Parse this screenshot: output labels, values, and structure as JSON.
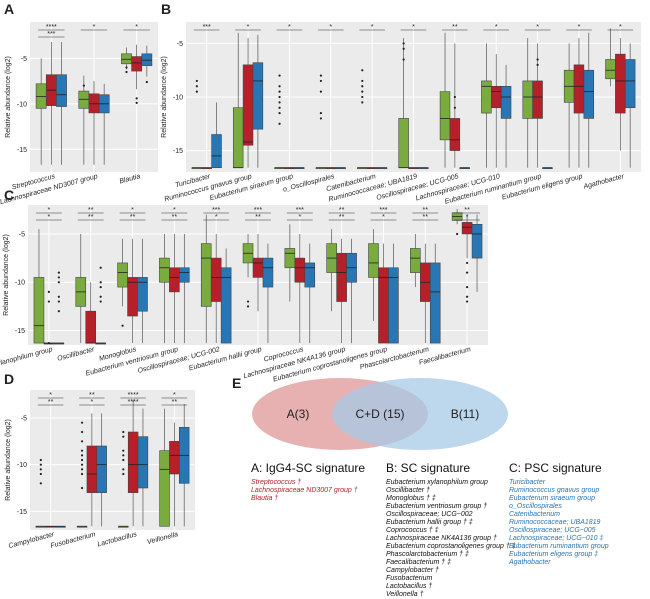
{
  "colors": {
    "igg4sc": "#7aab3f",
    "sc": "#b5202a",
    "psc": "#2876b4",
    "panel_bg": "#ebebeb",
    "venn_a": "#e3a3a3",
    "venn_b": "#a7c9e6"
  },
  "chart_data": [
    {
      "panel": "A",
      "type": "boxplot",
      "ylabel": "Relative abundance (log2)",
      "ylim": [
        -17.5,
        -1
      ],
      "yticks": [
        -15,
        -10,
        -5
      ],
      "categories": [
        "Streptococcus",
        "Lachnospiraceae ND3007 group",
        "Blautia"
      ],
      "signif": [
        [
          "****",
          "***"
        ],
        [
          "*",
          ""
        ],
        [
          "*",
          ""
        ]
      ],
      "boxes": [
        [
          [
            -16.7,
            -10.5,
            -9.2,
            -7.8,
            -5.0
          ],
          [
            -16.7,
            -10.2,
            -8.5,
            -6.8,
            -3.2
          ],
          [
            -16.7,
            -10.3,
            -9.0,
            -6.8,
            -3.2
          ]
        ],
        [
          [
            -16.7,
            -10.5,
            -9.5,
            -8.6,
            -6.9
          ],
          [
            -16.7,
            -11.0,
            -10.0,
            -8.9,
            -7.5
          ],
          [
            -16.7,
            -11.0,
            -10.0,
            -9.0,
            -7.8
          ]
        ],
        [
          [
            -6.2,
            -5.6,
            -5.1,
            -4.5,
            -3.8
          ],
          [
            -8.4,
            -6.4,
            -5.5,
            -4.8,
            -3.5
          ],
          [
            -7.0,
            -5.8,
            -5.2,
            -4.5,
            -3.6
          ]
        ]
      ],
      "outliers": [
        [
          [],
          [],
          []
        ],
        [
          [
            -8.0
          ],
          [],
          []
        ],
        [
          [
            -6.0,
            -6.5
          ],
          [
            -9.4,
            -9.9
          ],
          [
            -7.6
          ]
        ]
      ]
    },
    {
      "panel": "B",
      "type": "boxplot",
      "ylabel": "Relative abundance (log2)",
      "ylim": [
        -17,
        -3
      ],
      "yticks": [
        -15,
        -10,
        -5
      ],
      "categories": [
        "Turicibacter",
        "Ruminococcus gnavus group",
        "Eubacterium siraeum group",
        "o_Oscillospirales",
        "Catenibacterium",
        "Ruminococcaceae; UBA1819",
        "Oscillospiraceae; UCG-005",
        "Lachnospiraceae; UCG-010",
        "Eubacterium ruminantium group",
        "Eubacterium eligens group",
        "Agathobacter"
      ],
      "signif": [
        [
          "***"
        ],
        [
          "*"
        ],
        [
          "*"
        ],
        [
          "*"
        ],
        [
          "*"
        ],
        [
          "*"
        ],
        [
          "**"
        ],
        [
          "*"
        ],
        [
          "*"
        ],
        [
          "*"
        ],
        [
          "*"
        ]
      ],
      "boxes": [
        [
          [
            -16.6,
            -16.6,
            -16.6,
            -16.6,
            -16.6
          ],
          [
            -16.6,
            -16.6,
            -16.6,
            -16.6,
            -16.6
          ],
          [
            -16.6,
            -16.6,
            -15.5,
            -13.5,
            -10.5
          ]
        ],
        [
          [
            -16.6,
            -16.6,
            -16.6,
            -11.0,
            -4.0
          ],
          [
            -16.6,
            -14.5,
            -14.2,
            -7.0,
            -4.5
          ],
          [
            -16.6,
            -13.0,
            -8.5,
            -6.8,
            -4.2
          ]
        ],
        [
          [
            -16.6,
            -16.6,
            -16.6,
            -16.6,
            -16.6
          ],
          [
            -16.6,
            -16.6,
            -16.6,
            -16.6,
            -16.6
          ],
          [
            -16.6,
            -16.6,
            -16.6,
            -16.6,
            -16.6
          ]
        ],
        [
          [
            -16.6,
            -16.6,
            -16.6,
            -16.6,
            -16.6
          ],
          [
            -16.6,
            -16.6,
            -16.6,
            -16.6,
            -16.6
          ],
          [
            -16.6,
            -16.6,
            -16.6,
            -16.6,
            -16.6
          ]
        ],
        [
          [
            -16.6,
            -16.6,
            -16.6,
            -16.6,
            -16.6
          ],
          [
            -16.6,
            -16.6,
            -16.6,
            -16.6,
            -16.6
          ],
          [
            -16.6,
            -16.6,
            -16.6,
            -16.6,
            -16.6
          ]
        ],
        [
          [
            -16.6,
            -16.6,
            -16.6,
            -12.0,
            -4.5
          ],
          [
            -16.6,
            -16.6,
            -16.6,
            -16.6,
            -16.6
          ],
          [
            -16.6,
            -16.6,
            -16.6,
            -16.6,
            -16.6
          ]
        ],
        [
          [
            -16.6,
            -14.0,
            -12.0,
            -9.5,
            -4.0
          ],
          [
            -16.6,
            -15.0,
            -14.0,
            -12.0,
            -5.0
          ],
          [
            -16.6,
            -16.6,
            -16.6,
            -16.6,
            -16.6
          ]
        ],
        [
          [
            -16.6,
            -11.5,
            -9.0,
            -8.5,
            -5.0
          ],
          [
            -16.6,
            -11.0,
            -9.5,
            -9.0,
            -6.0
          ],
          [
            -16.6,
            -12.0,
            -10.0,
            -9.0,
            -7.0
          ]
        ],
        [
          [
            -16.6,
            -12.0,
            -10.0,
            -8.5,
            -4.5
          ],
          [
            -16.6,
            -12.0,
            -10.0,
            -8.5,
            -5.0
          ],
          [
            -16.6,
            -16.6,
            -16.6,
            -16.6,
            -16.6
          ]
        ],
        [
          [
            -16.6,
            -10.5,
            -9.0,
            -7.5,
            -5.0
          ],
          [
            -16.6,
            -11.5,
            -9.0,
            -7.0,
            -4.5
          ],
          [
            -16.6,
            -12.0,
            -9.5,
            -7.5,
            -4.0
          ]
        ],
        [
          [
            -9.0,
            -8.3,
            -7.5,
            -6.5,
            -3.6
          ],
          [
            -15.0,
            -11.5,
            -8.5,
            -6.0,
            -4.5
          ],
          [
            -16.6,
            -11.0,
            -8.5,
            -6.5,
            -5.0
          ]
        ]
      ],
      "outliers": [
        [
          [
            -8.5,
            -9.0,
            -9.5
          ],
          [],
          []
        ],
        [
          [],
          [],
          []
        ],
        [
          [
            -8.0,
            -9.0,
            -9.5,
            -10.0,
            -10.5,
            -11.0,
            -11.5,
            -12.5
          ],
          [],
          []
        ],
        [
          [
            -8.0,
            -8.5,
            -9.5,
            -11.5,
            -12.0
          ],
          [],
          []
        ],
        [
          [
            -7.5,
            -8.5,
            -9.0,
            -9.5,
            -10.0,
            -10.5
          ],
          [],
          []
        ],
        [
          [
            -5.0,
            -5.5,
            -6.5
          ],
          [],
          []
        ],
        [
          [],
          [
            -10.0,
            -11.0
          ],
          []
        ],
        [
          [],
          [],
          []
        ],
        [
          [],
          [
            -6.5,
            -7.0
          ],
          []
        ],
        [
          [],
          [],
          []
        ],
        [
          [],
          [],
          []
        ]
      ]
    },
    {
      "panel": "C",
      "type": "boxplot",
      "ylabel": "Relative abundance (log2)",
      "ylim": [
        -16.5,
        -2
      ],
      "yticks": [
        -15,
        -10,
        -5
      ],
      "categories": [
        "Eubacterium xylanophilum group",
        "Oscillibacter",
        "Monoglobus",
        "Eubacterium ventriosum group",
        "Oscillospiraceae; UCG-002",
        "Eubacterium hallii group",
        "Coprococcus",
        "Lachnospiraceae NK4A136 group",
        "Eubacterium coprostanoligenes group",
        "Phascolarctobacterium",
        "Faecalibacterium"
      ],
      "signif": [
        [
          "*",
          "*"
        ],
        [
          "**",
          "**"
        ],
        [
          "*",
          "**"
        ],
        [
          "*",
          "**"
        ],
        [
          "***",
          "*"
        ],
        [
          "***",
          "**"
        ],
        [
          "***",
          "*"
        ],
        [
          "**",
          "**"
        ],
        [
          "***",
          "*"
        ],
        [
          "**",
          "**"
        ],
        [
          "**",
          "*"
        ]
      ],
      "boxes": [
        [
          [
            -16.3,
            -16.3,
            -14.5,
            -9.5,
            -4.5
          ],
          [
            -16.3,
            -16.3,
            -16.3,
            -16.3,
            -16.3
          ],
          [
            -16.3,
            -16.3,
            -16.3,
            -16.3,
            -16.3
          ]
        ],
        [
          [
            -16.3,
            -12.5,
            -11.0,
            -9.5,
            -5.0
          ],
          [
            -16.3,
            -16.3,
            -16.3,
            -13.0,
            -10.0
          ],
          [
            -16.3,
            -16.3,
            -16.3,
            -16.3,
            -16.3
          ]
        ],
        [
          [
            -12.5,
            -10.5,
            -9.0,
            -8.0,
            -5.5
          ],
          [
            -16.3,
            -13.5,
            -10.0,
            -9.5,
            -5.5
          ],
          [
            -16.3,
            -13.0,
            -10.0,
            -9.5,
            -5.5
          ]
        ],
        [
          [
            -16.3,
            -10.0,
            -8.5,
            -7.5,
            -5.0
          ],
          [
            -16.3,
            -11.0,
            -9.5,
            -8.5,
            -5.0
          ],
          [
            -16.3,
            -10.0,
            -9.0,
            -8.5,
            -5.0
          ]
        ],
        [
          [
            -16.3,
            -12.5,
            -7.5,
            -6.0,
            -3.0
          ],
          [
            -16.3,
            -12.0,
            -9.5,
            -7.5,
            -5.0
          ],
          [
            -16.3,
            -16.3,
            -9.5,
            -8.5,
            -6.5
          ]
        ],
        [
          [
            -9.5,
            -8.0,
            -7.0,
            -6.0,
            -5.0
          ],
          [
            -13.0,
            -9.5,
            -8.0,
            -7.5,
            -5.0
          ],
          [
            -16.3,
            -10.5,
            -8.5,
            -7.5,
            -6.0
          ]
        ],
        [
          [
            -12.0,
            -8.5,
            -7.0,
            -6.5,
            -4.0
          ],
          [
            -16.3,
            -10.0,
            -8.5,
            -7.5,
            -5.0
          ],
          [
            -16.3,
            -10.5,
            -8.5,
            -8.0,
            -6.0
          ]
        ],
        [
          [
            -13.0,
            -9.0,
            -7.5,
            -6.0,
            -4.5
          ],
          [
            -16.3,
            -12.0,
            -9.0,
            -7.0,
            -5.5
          ],
          [
            -16.3,
            -10.0,
            -8.5,
            -7.0,
            -5.5
          ]
        ],
        [
          [
            -14.0,
            -9.5,
            -8.0,
            -6.0,
            -4.5
          ],
          [
            -16.3,
            -16.3,
            -9.5,
            -8.5,
            -6.0
          ],
          [
            -16.3,
            -16.3,
            -9.5,
            -8.5,
            -6.0
          ]
        ],
        [
          [
            -10.5,
            -9.0,
            -7.5,
            -6.5,
            -5.0
          ],
          [
            -16.3,
            -12.0,
            -10.0,
            -8.0,
            -6.0
          ],
          [
            -16.3,
            -16.3,
            -11.0,
            -8.0,
            -6.0
          ]
        ],
        [
          [
            -4.0,
            -3.6,
            -3.2,
            -2.8,
            -2.4
          ],
          [
            -7.5,
            -5.0,
            -4.3,
            -3.8,
            -3.0
          ],
          [
            -11.0,
            -7.5,
            -5.0,
            -4.0,
            -3.0
          ]
        ]
      ],
      "outliers": [
        [
          [],
          [
            -11.0,
            -12.0,
            -16.3
          ],
          [
            -9.0,
            -9.5,
            -10.0,
            -11.5,
            -12.0,
            -13.0
          ]
        ],
        [
          [],
          [],
          [
            -8.5,
            -10.0,
            -10.5,
            -11.5,
            -12.0
          ]
        ],
        [
          [
            -14.5
          ],
          [],
          []
        ],
        [
          [],
          [],
          []
        ],
        [
          [],
          [],
          []
        ],
        [
          [
            -12.0,
            -12.5
          ],
          [],
          []
        ],
        [
          [],
          [],
          []
        ],
        [
          [],
          [],
          []
        ],
        [
          [],
          [],
          []
        ],
        [
          [],
          [],
          []
        ],
        [
          [
            -5.0
          ],
          [
            -8.0,
            -9.0,
            -10.5,
            -11.5,
            -12.0
          ],
          []
        ]
      ]
    },
    {
      "panel": "D",
      "type": "boxplot",
      "ylabel": "Relative abundance (log2)",
      "ylim": [
        -17,
        -2
      ],
      "yticks": [
        -15,
        -10,
        -5
      ],
      "categories": [
        "Campylobacter",
        "Fusobacterium",
        "Lactobacillus",
        "Veillonella"
      ],
      "signif": [
        [
          "*",
          "**"
        ],
        [
          "**",
          "*"
        ],
        [
          "****",
          "****"
        ],
        [
          "*",
          "**"
        ]
      ],
      "boxes": [
        [
          [
            -16.6,
            -16.6,
            -16.6,
            -16.6,
            -16.6
          ],
          [
            -16.6,
            -16.6,
            -16.6,
            -16.6,
            -16.6
          ],
          [
            -16.6,
            -16.6,
            -16.6,
            -16.6,
            -16.6
          ]
        ],
        [
          [
            -16.6,
            -16.6,
            -16.6,
            -16.6,
            -16.6
          ],
          [
            -16.6,
            -13.0,
            -11.0,
            -8.0,
            -4.5
          ],
          [
            -16.6,
            -13.0,
            -10.0,
            -8.0,
            -4.5
          ]
        ],
        [
          [
            -16.6,
            -16.6,
            -16.6,
            -16.6,
            -16.6
          ],
          [
            -16.6,
            -13.0,
            -10.0,
            -6.5,
            -3.0
          ],
          [
            -16.6,
            -12.5,
            -10.0,
            -7.0,
            -4.0
          ]
        ],
        [
          [
            -16.6,
            -16.6,
            -10.5,
            -8.5,
            -4.0
          ],
          [
            -16.6,
            -11.0,
            -9.0,
            -7.5,
            -5.5
          ],
          [
            -16.6,
            -12.0,
            -9.0,
            -6.0,
            -3.5
          ]
        ]
      ],
      "outliers": [
        [
          [
            -9.5,
            -10.0,
            -10.5,
            -11.0,
            -12.0
          ],
          [],
          []
        ],
        [
          [
            -5.5,
            -6.5,
            -7.5,
            -8.5,
            -9.0,
            -9.5,
            -10.0,
            -10.5,
            -11.0,
            -12.5
          ],
          [],
          []
        ],
        [
          [
            -6.5,
            -7.0,
            -8.5,
            -9.0,
            -9.5,
            -10.5,
            -11.0
          ],
          [],
          []
        ],
        [
          [],
          [],
          []
        ]
      ]
    }
  ],
  "venn": {
    "a_label": "A(3)",
    "cd_label": "C+D (15)",
    "b_label": "B(11)"
  },
  "signatures": {
    "a_title": "A: IgG4-SC signature",
    "a_items": [
      "Streptococcus †",
      "Lachnospiraceae ND3007 group †",
      "Blautia †"
    ],
    "b_title": "B: SC signature",
    "b_items": [
      "Eubacterium xylanophilum group",
      "Oscillibacter †",
      "Monoglobus † ‡",
      "Eubacterium ventriosum group †",
      "Oscillospiraceae; UCG−002",
      "Eubacterium hallii group † ‡",
      "Coprococcus † ‡",
      "Lachnospiraceae NK4A136 group †",
      "Eubacterium coprostanoligenes group † ‡",
      "Phascolarctobacterium † ‡",
      "Faecalibacterium † ‡",
      "Campylobacter †",
      "Fusobacterium",
      "Lactobacillus †",
      "Veillonella †"
    ],
    "c_title": "C: PSC signature",
    "c_items": [
      "Turicibacter",
      "Ruminococcus gnavus group",
      "Eubacterium siraeum group",
      "o_Oscillospirales",
      "Catenibacterium",
      "Ruminococcaceae; UBA1819",
      "Oscillospiraceae; UCG−005",
      "Lachnospiraceae; UCG−010 ‡",
      "Eubacterium ruminantium group",
      "Eubacterium eligens group ‡",
      "Agathobacter"
    ]
  }
}
